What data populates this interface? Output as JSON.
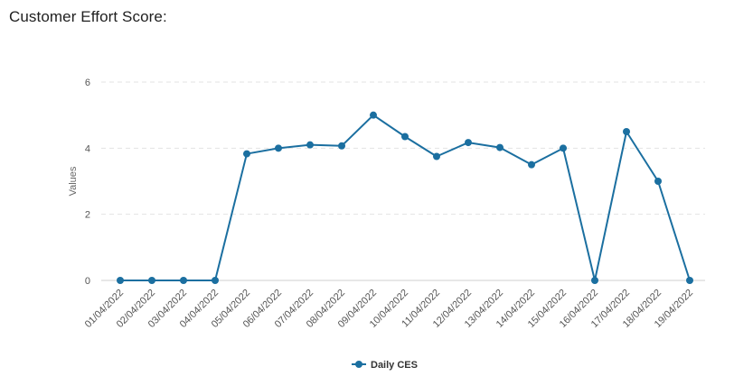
{
  "title": "Customer Effort Score:",
  "chart_data": {
    "type": "line",
    "x": [
      "01/04/2022",
      "02/04/2022",
      "03/04/2022",
      "04/04/2022",
      "05/04/2022",
      "06/04/2022",
      "07/04/2022",
      "08/04/2022",
      "09/04/2022",
      "10/04/2022",
      "11/04/2022",
      "12/04/2022",
      "13/04/2022",
      "14/04/2022",
      "15/04/2022",
      "16/04/2022",
      "17/04/2022",
      "18/04/2022",
      "19/04/2022"
    ],
    "series": [
      {
        "name": "Daily CES",
        "color": "#1b6fa0",
        "values": [
          0,
          0,
          0,
          0,
          3.83,
          4.0,
          4.1,
          4.07,
          5.0,
          4.35,
          3.75,
          4.17,
          4.02,
          3.5,
          4.0,
          0,
          4.5,
          3.0,
          0
        ]
      }
    ],
    "ylabel": "Values",
    "xlabel": "",
    "ylim": [
      0,
      6
    ],
    "yticks": [
      0,
      2,
      4,
      6
    ],
    "grid": true,
    "legend_position": "bottom"
  }
}
